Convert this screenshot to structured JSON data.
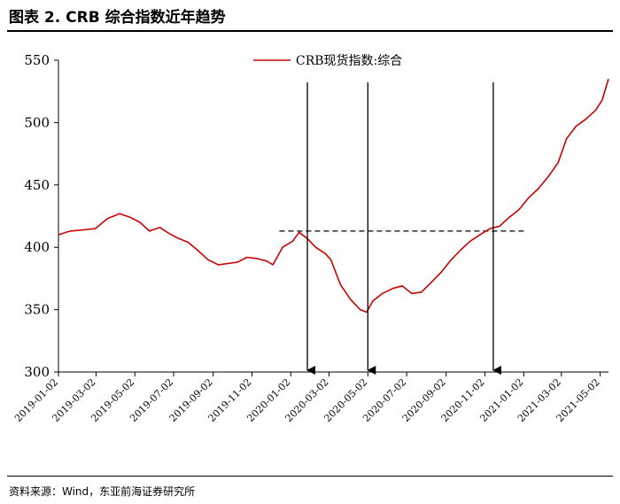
{
  "header": {
    "title": "图表 2.   CRB 综合指数近年趋势"
  },
  "footer": {
    "source": "资料来源：Wind，东亚前海证券研究所"
  },
  "chart_data": {
    "type": "line",
    "series": [
      {
        "name": "CRB现货指数:综合",
        "color": "#cc0000",
        "points": [
          [
            "2019-01-02",
            410
          ],
          [
            "2019-01-20",
            413
          ],
          [
            "2019-02-10",
            414
          ],
          [
            "2019-03-01",
            415
          ],
          [
            "2019-03-20",
            423
          ],
          [
            "2019-04-08",
            427
          ],
          [
            "2019-04-25",
            424
          ],
          [
            "2019-05-10",
            420
          ],
          [
            "2019-05-25",
            413
          ],
          [
            "2019-06-10",
            416
          ],
          [
            "2019-06-25",
            411
          ],
          [
            "2019-07-10",
            407
          ],
          [
            "2019-07-25",
            404
          ],
          [
            "2019-08-10",
            397
          ],
          [
            "2019-08-25",
            390
          ],
          [
            "2019-09-10",
            386
          ],
          [
            "2019-09-25",
            387
          ],
          [
            "2019-10-10",
            388
          ],
          [
            "2019-10-25",
            392
          ],
          [
            "2019-11-10",
            391
          ],
          [
            "2019-11-25",
            389
          ],
          [
            "2019-12-05",
            386
          ],
          [
            "2019-12-20",
            400
          ],
          [
            "2020-01-05",
            405
          ],
          [
            "2020-01-15",
            412
          ],
          [
            "2020-01-28",
            407
          ],
          [
            "2020-02-10",
            400
          ],
          [
            "2020-02-25",
            395
          ],
          [
            "2020-03-05",
            390
          ],
          [
            "2020-03-20",
            370
          ],
          [
            "2020-04-05",
            358
          ],
          [
            "2020-04-20",
            350
          ],
          [
            "2020-04-30",
            348
          ],
          [
            "2020-05-10",
            357
          ],
          [
            "2020-05-25",
            363
          ],
          [
            "2020-06-10",
            367
          ],
          [
            "2020-06-25",
            369
          ],
          [
            "2020-07-10",
            363
          ],
          [
            "2020-07-25",
            364
          ],
          [
            "2020-08-10",
            372
          ],
          [
            "2020-08-25",
            380
          ],
          [
            "2020-09-10",
            390
          ],
          [
            "2020-09-25",
            398
          ],
          [
            "2020-10-10",
            405
          ],
          [
            "2020-10-25",
            410
          ],
          [
            "2020-11-10",
            415
          ],
          [
            "2020-11-25",
            417
          ],
          [
            "2020-12-10",
            424
          ],
          [
            "2020-12-25",
            430
          ],
          [
            "2021-01-10",
            440
          ],
          [
            "2021-01-25",
            447
          ],
          [
            "2021-02-10",
            457
          ],
          [
            "2021-02-25",
            468
          ],
          [
            "2021-03-10",
            487
          ],
          [
            "2021-03-25",
            497
          ],
          [
            "2021-04-10",
            503
          ],
          [
            "2021-04-25",
            510
          ],
          [
            "2021-05-05",
            518
          ],
          [
            "2021-05-15",
            535
          ]
        ]
      }
    ],
    "y_ticks": [
      "550",
      "500",
      "450",
      "400",
      "350",
      "300"
    ],
    "ylim": [
      300,
      550
    ],
    "x_ticks": [
      "2019-01-02",
      "2019-03-02",
      "2019-05-02",
      "2019-07-02",
      "2019-09-02",
      "2019-11-02",
      "2020-01-02",
      "2020-03-02",
      "2020-05-02",
      "2020-07-02",
      "2020-09-02",
      "2020-11-02",
      "2021-01-02",
      "2021-03-02",
      "2021-05-02"
    ],
    "xlim": [
      "2019-01-02",
      "2021-05-15"
    ],
    "reference_line": {
      "y": 413,
      "x_start": "2019-12-15",
      "x_end": "2021-01-05",
      "style": "dashed"
    },
    "arrows": [
      "2020-01-28",
      "2020-05-02",
      "2020-11-15"
    ],
    "legend": {
      "position": "top-center"
    },
    "grid": false
  }
}
